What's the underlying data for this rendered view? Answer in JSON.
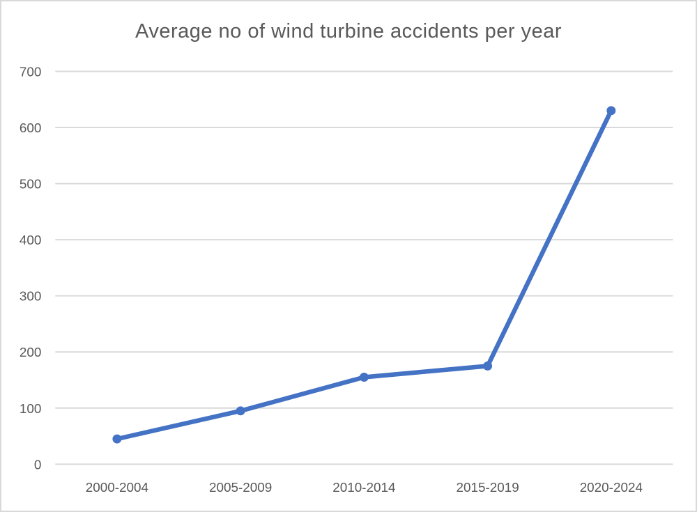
{
  "page": {
    "background": "#ffffff",
    "border_color": "#d9d9d9"
  },
  "chart_data": {
    "type": "line",
    "title": "Average no of wind turbine accidents per year",
    "categories": [
      "2000-2004",
      "2005-2009",
      "2010-2014",
      "2015-2019",
      "2020-2024"
    ],
    "values": [
      45,
      95,
      155,
      175,
      630
    ],
    "xlabel": "",
    "ylabel": "",
    "ylim": [
      0,
      700
    ],
    "yticks": [
      0,
      100,
      200,
      300,
      400,
      500,
      600,
      700
    ],
    "grid": true,
    "legend": "none",
    "marker": "circle",
    "colors": {
      "line": "#4472c4",
      "marker": "#4472c4",
      "gridline": "#d9d9d9",
      "axis_text": "#595959",
      "title_text": "#595959"
    }
  }
}
